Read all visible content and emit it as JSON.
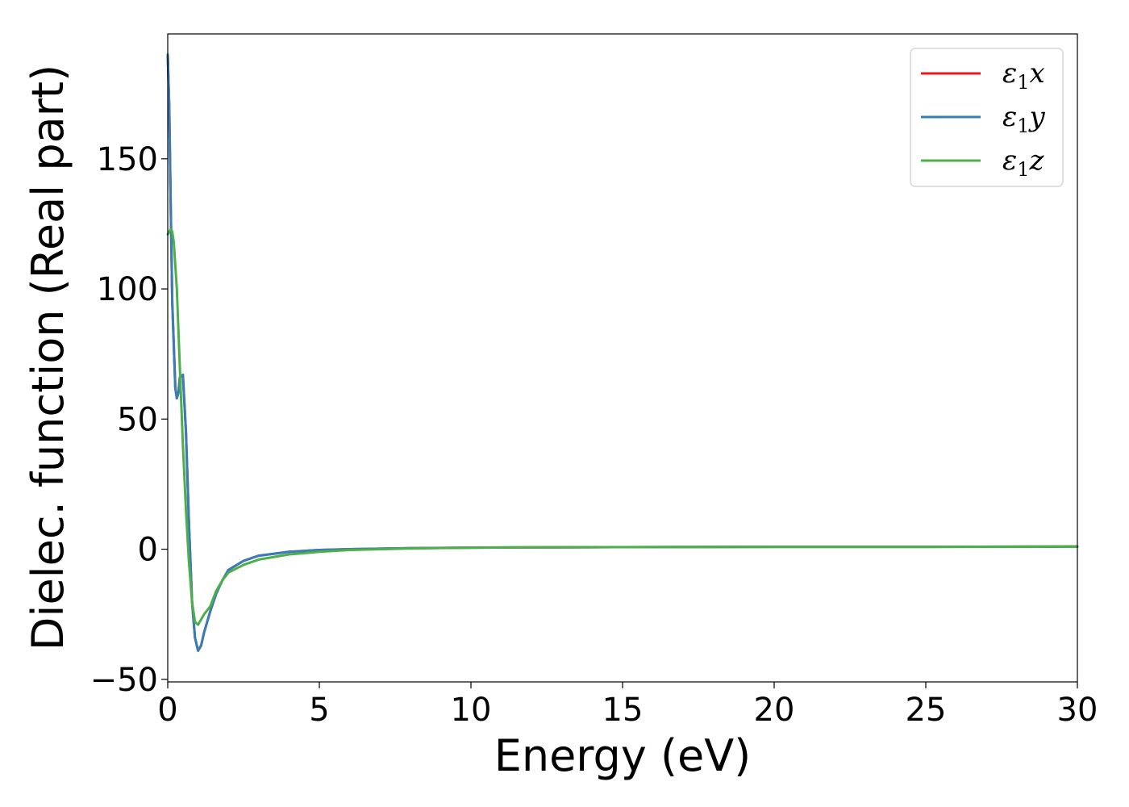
{
  "chart_data": {
    "type": "line",
    "xlabel": "Energy (eV)",
    "ylabel": "Dielec. function (Real part)",
    "xlim": [
      0,
      30
    ],
    "ylim": [
      -51,
      198
    ],
    "xticks": [
      0,
      5,
      10,
      15,
      20,
      25,
      30
    ],
    "xtick_labels": [
      "0",
      "5",
      "10",
      "15",
      "20",
      "25",
      "30"
    ],
    "yticks": [
      -50,
      0,
      50,
      100,
      150
    ],
    "ytick_labels": [
      "−50",
      "0",
      "50",
      "100",
      "150"
    ],
    "grid": false,
    "legend_position": "top-right",
    "series": [
      {
        "name": "ε₁x",
        "symbol": "ε",
        "sub": "1",
        "suffix": "x",
        "color": "#e41a1c",
        "x": [
          0,
          0.05,
          0.1,
          0.15,
          0.25,
          0.3,
          0.35,
          0.4,
          0.5,
          0.6,
          0.7,
          0.8,
          0.9,
          1.0,
          1.1,
          1.2,
          1.4,
          1.6,
          1.8,
          2.0,
          2.5,
          3.0,
          4.0,
          5.0,
          6.0,
          8.0,
          10.0,
          15.0,
          20.0,
          25.0,
          30.0
        ],
        "y": [
          190,
          170,
          130,
          95,
          62,
          58,
          60,
          66,
          67,
          45,
          10,
          -20,
          -34,
          -39,
          -37,
          -32,
          -24,
          -17,
          -12,
          -8,
          -4.5,
          -2.5,
          -1.0,
          -0.3,
          0.0,
          0.4,
          0.6,
          0.8,
          0.9,
          0.9,
          1.0
        ]
      },
      {
        "name": "ε₁y",
        "symbol": "ε",
        "sub": "1",
        "suffix": "y",
        "color": "#377eb8",
        "x": [
          0,
          0.05,
          0.1,
          0.15,
          0.25,
          0.3,
          0.35,
          0.4,
          0.5,
          0.6,
          0.7,
          0.8,
          0.9,
          1.0,
          1.1,
          1.2,
          1.4,
          1.6,
          1.8,
          2.0,
          2.5,
          3.0,
          4.0,
          5.0,
          6.0,
          8.0,
          10.0,
          15.0,
          20.0,
          25.0,
          30.0
        ],
        "y": [
          190,
          170,
          130,
          95,
          62,
          58,
          60,
          66,
          67,
          45,
          10,
          -20,
          -34,
          -39,
          -37,
          -32,
          -24,
          -17,
          -12,
          -8,
          -4.5,
          -2.5,
          -1.0,
          -0.3,
          0.0,
          0.4,
          0.6,
          0.8,
          0.9,
          0.9,
          1.0
        ]
      },
      {
        "name": "ε₁z",
        "symbol": "ε",
        "sub": "1",
        "suffix": "z",
        "color": "#4daf4a",
        "x": [
          0,
          0.05,
          0.1,
          0.15,
          0.2,
          0.3,
          0.4,
          0.5,
          0.6,
          0.7,
          0.8,
          0.9,
          1.0,
          1.1,
          1.2,
          1.4,
          1.6,
          1.8,
          2.0,
          2.5,
          3.0,
          4.0,
          5.0,
          6.0,
          8.0,
          10.0,
          15.0,
          20.0,
          25.0,
          30.0
        ],
        "y": [
          121,
          122,
          123,
          122,
          118,
          100,
          70,
          40,
          15,
          -5,
          -20,
          -28,
          -29,
          -27,
          -25,
          -22,
          -16,
          -12,
          -9,
          -6,
          -4,
          -2,
          -1,
          -0.3,
          0.3,
          0.6,
          0.8,
          0.9,
          0.9,
          1.0
        ]
      }
    ]
  }
}
